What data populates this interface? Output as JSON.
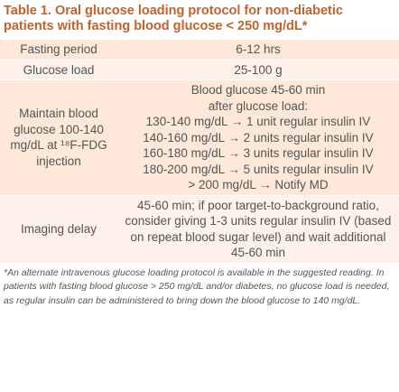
{
  "title": {
    "label": "Table 1.",
    "text": "Oral glucose loading protocol for non-diabetic patients with fasting blood glucose < 250 mg/dL*"
  },
  "table": {
    "rows": [
      [
        "Fasting period",
        "6-12 hrs"
      ],
      [
        "Glucose load",
        "25-100 g"
      ],
      [
        "Maintain blood glucose 100-140 mg/dL at ¹⁸F-FDG injection",
        [
          "Blood glucose 45-60 min",
          "after glucose load:",
          "130-140 mg/dL → 1 unit regular insulin IV",
          "140-160 mg/dL → 2 units regular insulin IV",
          "160-180 mg/dL → 3 units regular insulin IV",
          "180-200 mg/dL → 5 units regular insulin IV",
          "> 200 mg/dL → Notify MD"
        ]
      ],
      [
        "Imaging delay",
        "45-60 min; if poor target-to-background ratio, consider giving 1-3 units regular insulin IV (based on repeat blood sugar level) and wait additional 45-60 min"
      ]
    ]
  },
  "footnote": "*An alternate intravenous glucose loading protocol is available in the suggested reading. In patients with fasting blood glucose > 250 mg/dL and/or diabetes, no glucose load is needed, as regular insulin can be administered to bring down the blood glucose to 140 mg/dL."
}
